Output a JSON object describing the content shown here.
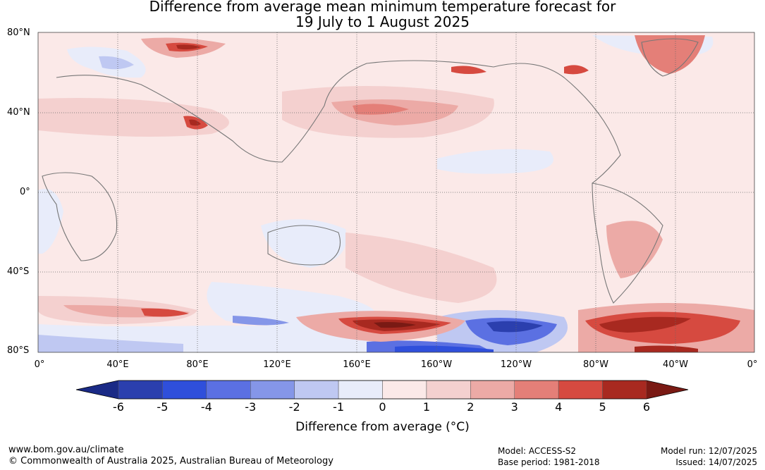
{
  "title_line1": "Difference from average mean minimum temperature forecast for",
  "title_line2": "19 July to 1 August 2025",
  "lat_labels": [
    "80°N",
    "40°N",
    "0°",
    "40°S",
    "80°S"
  ],
  "lon_labels": [
    "0°",
    "40°E",
    "80°E",
    "120°E",
    "160°E",
    "160°W",
    "120°W",
    "80°W",
    "40°W",
    "0°"
  ],
  "colorbar": {
    "ticks": [
      "-6",
      "-5",
      "-4",
      "-3",
      "-2",
      "-1",
      "0",
      "1",
      "2",
      "3",
      "4",
      "5",
      "6"
    ],
    "colors": [
      "#1a2a86",
      "#2b3fae",
      "#2f4fdb",
      "#5b70e2",
      "#8596e8",
      "#bfc8f2",
      "#e8ecfa",
      "#fbe9e8",
      "#f4d0cf",
      "#ecaaa6",
      "#e47f78",
      "#d64a40",
      "#a82920",
      "#7a1a14"
    ],
    "label": "Difference from average (°C)"
  },
  "footer": {
    "website": "www.bom.gov.au/climate",
    "copyright": "© Commonwealth of Australia 2025, Australian Bureau of Meteorology",
    "model": "Model: ACCESS-S2",
    "base_period": "Base period: 1981-2018",
    "model_run": "Model run: 12/07/2025",
    "issued": "Issued: 14/07/2025"
  }
}
